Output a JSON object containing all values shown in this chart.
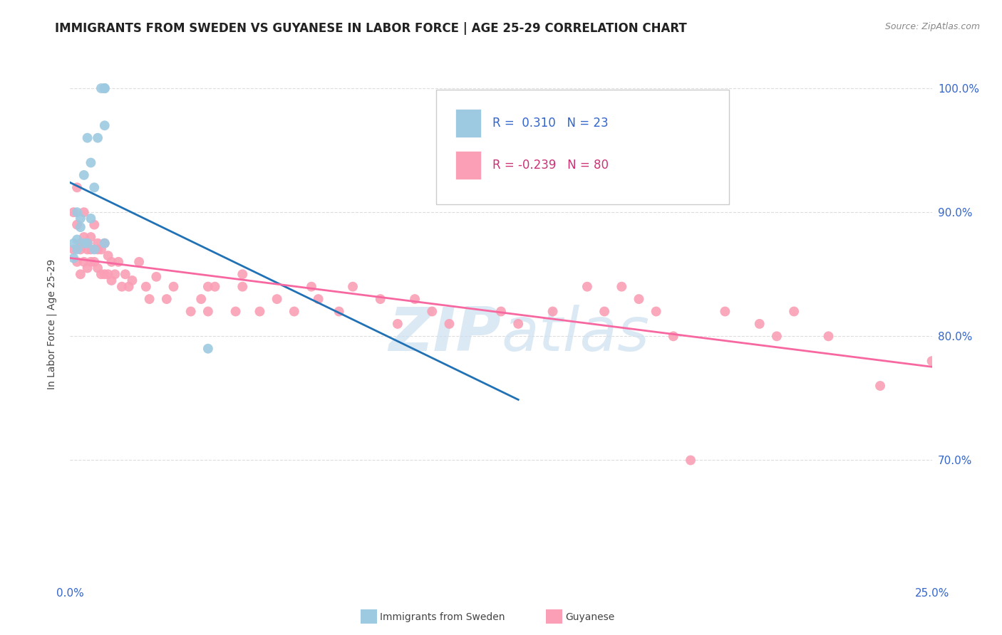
{
  "title": "IMMIGRANTS FROM SWEDEN VS GUYANESE IN LABOR FORCE | AGE 25-29 CORRELATION CHART",
  "source_text": "Source: ZipAtlas.com",
  "ylabel": "In Labor Force | Age 25-29",
  "xlim": [
    0.0,
    0.25
  ],
  "ylim": [
    0.6,
    1.02
  ],
  "yticks": [
    0.7,
    0.8,
    0.9,
    1.0
  ],
  "xticks": [
    0.0,
    0.05,
    0.1,
    0.15,
    0.2,
    0.25
  ],
  "xtick_labels": [
    "0.0%",
    "",
    "",
    "",
    "",
    "25.0%"
  ],
  "ytick_labels": [
    "70.0%",
    "80.0%",
    "90.0%",
    "100.0%"
  ],
  "title_fontsize": 12,
  "label_fontsize": 10,
  "tick_fontsize": 11,
  "legend_R_sweden": " 0.310",
  "legend_N_sweden": "23",
  "legend_R_guyanese": "-0.239",
  "legend_N_guyanese": "80",
  "sweden_color": "#9ecae1",
  "guyanese_color": "#fa9fb5",
  "sweden_line_color": "#2171b5",
  "guyanese_line_color": "#f768a1",
  "background_color": "#ffffff",
  "watermark_color": "#cde0f0",
  "sweden_x": [
    0.001,
    0.001,
    0.002,
    0.002,
    0.002,
    0.003,
    0.003,
    0.004,
    0.004,
    0.005,
    0.005,
    0.006,
    0.006,
    0.007,
    0.007,
    0.008,
    0.009,
    0.01,
    0.01,
    0.01,
    0.01,
    0.01,
    0.04
  ],
  "sweden_y": [
    0.863,
    0.875,
    0.87,
    0.878,
    0.9,
    0.895,
    0.888,
    0.875,
    0.93,
    0.96,
    0.875,
    0.94,
    0.895,
    0.92,
    0.87,
    0.96,
    1.0,
    1.0,
    1.0,
    1.0,
    0.97,
    0.875,
    0.79
  ],
  "guyanese_x": [
    0.001,
    0.001,
    0.002,
    0.002,
    0.002,
    0.003,
    0.003,
    0.003,
    0.004,
    0.004,
    0.004,
    0.005,
    0.005,
    0.005,
    0.005,
    0.006,
    0.006,
    0.006,
    0.007,
    0.007,
    0.008,
    0.008,
    0.008,
    0.009,
    0.009,
    0.01,
    0.01,
    0.011,
    0.011,
    0.012,
    0.012,
    0.013,
    0.014,
    0.015,
    0.016,
    0.017,
    0.018,
    0.02,
    0.022,
    0.023,
    0.025,
    0.028,
    0.03,
    0.035,
    0.038,
    0.04,
    0.04,
    0.042,
    0.048,
    0.05,
    0.05,
    0.055,
    0.06,
    0.065,
    0.07,
    0.072,
    0.078,
    0.082,
    0.09,
    0.095,
    0.1,
    0.105,
    0.11,
    0.125,
    0.13,
    0.14,
    0.15,
    0.155,
    0.16,
    0.165,
    0.17,
    0.175,
    0.18,
    0.19,
    0.2,
    0.205,
    0.21,
    0.22,
    0.235,
    0.25
  ],
  "guyanese_y": [
    0.87,
    0.9,
    0.86,
    0.89,
    0.92,
    0.85,
    0.875,
    0.87,
    0.88,
    0.9,
    0.86,
    0.875,
    0.855,
    0.875,
    0.87,
    0.87,
    0.86,
    0.88,
    0.89,
    0.86,
    0.875,
    0.87,
    0.855,
    0.87,
    0.85,
    0.875,
    0.85,
    0.865,
    0.85,
    0.86,
    0.845,
    0.85,
    0.86,
    0.84,
    0.85,
    0.84,
    0.845,
    0.86,
    0.84,
    0.83,
    0.848,
    0.83,
    0.84,
    0.82,
    0.83,
    0.84,
    0.82,
    0.84,
    0.82,
    0.84,
    0.85,
    0.82,
    0.83,
    0.82,
    0.84,
    0.83,
    0.82,
    0.84,
    0.83,
    0.81,
    0.83,
    0.82,
    0.81,
    0.82,
    0.81,
    0.82,
    0.84,
    0.82,
    0.84,
    0.83,
    0.82,
    0.8,
    0.7,
    0.82,
    0.81,
    0.8,
    0.82,
    0.8,
    0.76,
    0.78
  ]
}
